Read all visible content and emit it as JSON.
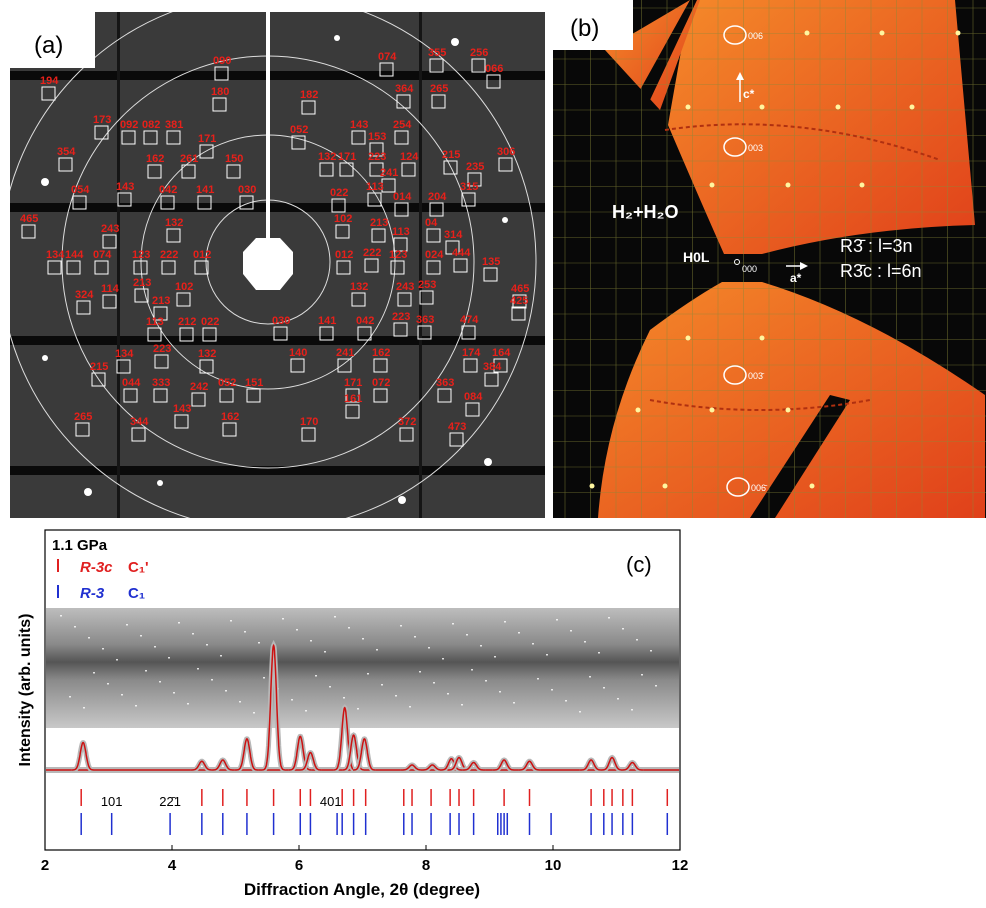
{
  "panel_a": {
    "label": "(a)",
    "reflections": [
      "090",
      "074",
      "355",
      "256",
      "066",
      "194",
      "180",
      "182",
      "364",
      "265",
      "173",
      "092",
      "082",
      "381",
      "171",
      "052",
      "143",
      "153",
      "254",
      "354",
      "162",
      "261",
      "150",
      "132",
      "171",
      "223",
      "124",
      "215",
      "235",
      "306",
      "241",
      "054",
      "143",
      "042",
      "141",
      "030",
      "022",
      "113",
      "014",
      "204",
      "315",
      "465",
      "243",
      "132",
      "102",
      "213",
      "113",
      "04",
      "314",
      "134",
      "144",
      "074",
      "123",
      "222",
      "012",
      "012",
      "222",
      "123",
      "024",
      "444",
      "135",
      "324",
      "114",
      "213",
      "102",
      "132",
      "243",
      "253",
      "465",
      "425",
      "213",
      "113",
      "212",
      "022",
      "030",
      "141",
      "042",
      "223",
      "363",
      "474",
      "134",
      "223",
      "132",
      "140",
      "241",
      "162",
      "174",
      "164",
      "215",
      "384",
      "044",
      "333",
      "242",
      "052",
      "151",
      "171",
      "072",
      "363",
      "143",
      "161",
      "084",
      "265",
      "344",
      "162",
      "170",
      "372",
      "473"
    ]
  },
  "panel_b": {
    "label": "(b)",
    "sample": "H₂+H₂O",
    "plane": "H0L",
    "origin": "000",
    "a_axis": "a*",
    "c_axis": "c*",
    "rule_1": "R3̄  : l=3n",
    "rule_2": "R3̄c : l=6n",
    "spots": [
      "006",
      "003",
      "003̄",
      "006̄"
    ]
  },
  "chart_data": {
    "type": "line",
    "panel_label": "(c)",
    "pressure": "1.1 GPa",
    "xlabel": "Diffraction Angle, 2θ (degree)",
    "ylabel": "Intensity (arb. units)",
    "xlim": [
      2,
      12
    ],
    "xticks": [
      2,
      4,
      6,
      8,
      10,
      12
    ],
    "ylim": [
      0,
      1.1
    ],
    "profile": {
      "color": "#cc1111",
      "x": [
        2.6,
        4.47,
        4.8,
        5.18,
        5.6,
        6.02,
        6.18,
        6.72,
        6.86,
        7.03,
        7.78,
        8.1,
        8.4,
        8.52,
        8.75,
        9.23,
        9.63,
        10.6,
        10.93,
        11.25
      ],
      "values": [
        0.22,
        0.07,
        0.08,
        0.25,
        1.0,
        0.27,
        0.14,
        0.5,
        0.28,
        0.25,
        0.04,
        0.04,
        0.09,
        0.1,
        0.06,
        0.08,
        0.07,
        0.08,
        0.1,
        0.06
      ]
    },
    "reflections": [
      {
        "name": "R-3c",
        "phase": "C₁'",
        "color": "#e02020",
        "positions": [
          2.57,
          4.47,
          4.8,
          5.18,
          5.6,
          6.02,
          6.18,
          6.68,
          6.86,
          7.05,
          7.65,
          7.78,
          8.08,
          8.38,
          8.52,
          8.75,
          9.23,
          9.63,
          10.6,
          10.8,
          10.93,
          11.1,
          11.25,
          11.8
        ]
      },
      {
        "name": "R-3",
        "phase": "C₁",
        "color": "#2030d0",
        "positions": [
          2.57,
          3.05,
          3.97,
          4.47,
          4.8,
          5.18,
          5.6,
          6.02,
          6.18,
          6.6,
          6.68,
          6.86,
          7.05,
          7.65,
          7.78,
          8.08,
          8.38,
          8.52,
          8.75,
          9.13,
          9.18,
          9.23,
          9.28,
          9.63,
          9.97,
          10.6,
          10.8,
          10.93,
          11.1,
          11.25,
          11.8
        ]
      }
    ],
    "hkl_labels": [
      {
        "label": "101",
        "x": 3.05
      },
      {
        "label": "22̄1",
        "x": 3.97
      },
      {
        "label": "401",
        "x": 6.5
      }
    ]
  }
}
